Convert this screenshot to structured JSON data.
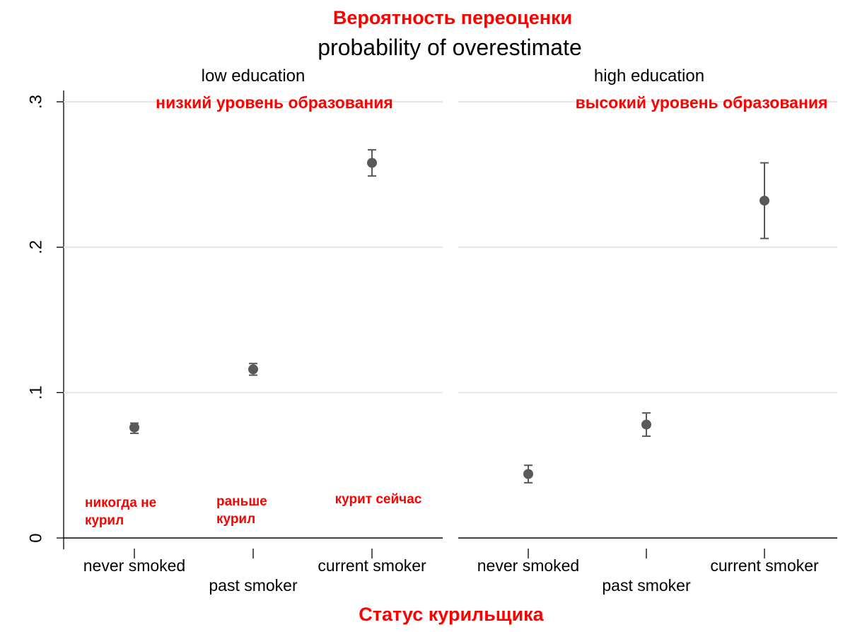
{
  "title_ru": "Вероятность переоценки",
  "title_en": "probability of overestimate",
  "xlabel_ru": "Статус курильщика",
  "colors": {
    "annotation": "#ff0000",
    "marker": "#595959",
    "grid": "#e6e6e6",
    "axis": "#000000"
  },
  "chart_data": {
    "type": "scatter",
    "error_bars": true,
    "grid": true,
    "ylim": [
      0,
      0.3
    ],
    "yticks": [
      {
        "value": 0,
        "label": "0"
      },
      {
        "value": 0.1,
        "label": ".1"
      },
      {
        "value": 0.2,
        "label": ".2"
      },
      {
        "value": 0.3,
        "label": ".3"
      }
    ],
    "categories": [
      "never smoked",
      "past smoker",
      "current smoker"
    ],
    "category_labels_ru": [
      "никогда не курил",
      "раньше курил",
      "курит сейчас"
    ],
    "panels": [
      {
        "title": "low education",
        "title_ru": "низкий уровень образования",
        "points": [
          {
            "category": "never smoked",
            "value": 0.076,
            "lower": 0.072,
            "upper": 0.079
          },
          {
            "category": "past smoker",
            "value": 0.116,
            "lower": 0.112,
            "upper": 0.12
          },
          {
            "category": "current smoker",
            "value": 0.258,
            "lower": 0.249,
            "upper": 0.267
          }
        ]
      },
      {
        "title": "high education",
        "title_ru": "высокий уровень образования",
        "points": [
          {
            "category": "never smoked",
            "value": 0.044,
            "lower": 0.038,
            "upper": 0.05
          },
          {
            "category": "past smoker",
            "value": 0.078,
            "lower": 0.07,
            "upper": 0.086
          },
          {
            "category": "current smoker",
            "value": 0.232,
            "lower": 0.206,
            "upper": 0.258
          }
        ]
      }
    ]
  }
}
